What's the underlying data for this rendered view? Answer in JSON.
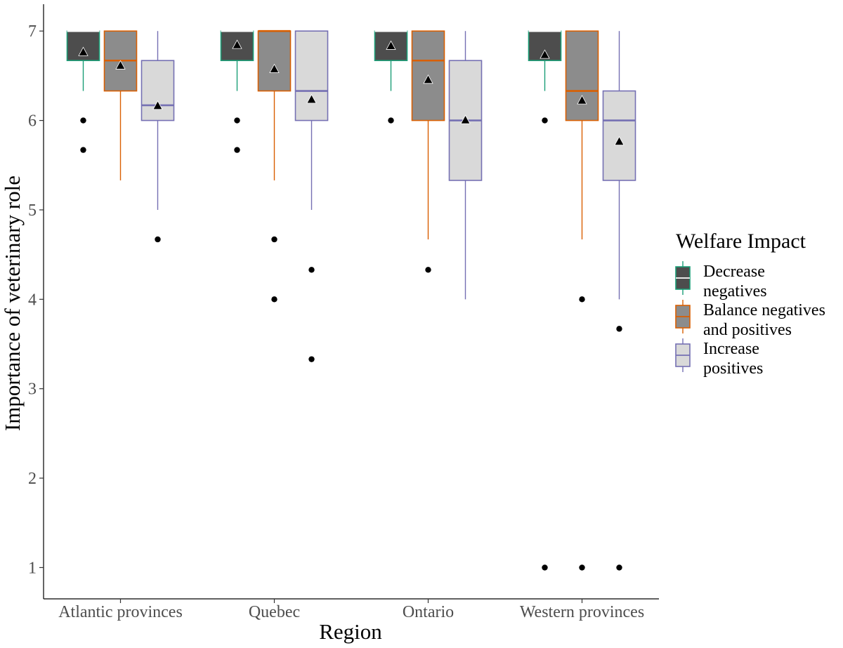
{
  "chart_data": {
    "type": "boxplot",
    "title": "",
    "xlabel": "Region",
    "ylabel": "Importance of veterinary role",
    "ylim": [
      0.65,
      7.3
    ],
    "yticks": [
      1,
      2,
      3,
      4,
      5,
      6,
      7
    ],
    "ytick_labels": [
      "1",
      "2",
      "3",
      "4",
      "5",
      "6",
      "7"
    ],
    "grid": false,
    "categories": [
      "Atlantic provinces",
      "Quebec",
      "Ontario",
      "Western provinces"
    ],
    "legend": {
      "title": "Welfare Impact",
      "position": "right",
      "entries": [
        {
          "line1": "Decrease",
          "line2": "negatives"
        },
        {
          "line1": "Balance negatives",
          "line2": "and positives"
        },
        {
          "line1": "Increase",
          "line2": "positives"
        }
      ]
    },
    "series": [
      {
        "name": "Decrease negatives",
        "fill": "#4d4d4d",
        "stroke": "#1b9e77",
        "median_color": "#ffffff",
        "boxes": [
          {
            "whisker_low": 6.33,
            "q1": 6.67,
            "median": 7.0,
            "q3": 7.0,
            "whisker_high": 7.0,
            "mean": 6.76,
            "outliers": [
              6.0,
              5.67
            ]
          },
          {
            "whisker_low": 6.33,
            "q1": 6.67,
            "median": 7.0,
            "q3": 7.0,
            "whisker_high": 7.0,
            "mean": 6.84,
            "outliers": [
              6.0,
              5.67
            ]
          },
          {
            "whisker_low": 6.33,
            "q1": 6.67,
            "median": 7.0,
            "q3": 7.0,
            "whisker_high": 7.0,
            "mean": 6.83,
            "outliers": [
              6.0
            ]
          },
          {
            "whisker_low": 6.33,
            "q1": 6.67,
            "median": 7.0,
            "q3": 7.0,
            "whisker_high": 7.0,
            "mean": 6.73,
            "outliers": [
              6.0,
              1.0
            ]
          }
        ]
      },
      {
        "name": "Balance negatives and positives",
        "fill": "#8c8c8c",
        "stroke": "#d95f02",
        "median_color": "#d95f02",
        "boxes": [
          {
            "whisker_low": 5.33,
            "q1": 6.33,
            "median": 6.67,
            "q3": 7.0,
            "whisker_high": 7.0,
            "mean": 6.61,
            "outliers": []
          },
          {
            "whisker_low": 5.33,
            "q1": 6.33,
            "median": 7.0,
            "q3": 7.0,
            "whisker_high": 7.0,
            "mean": 6.57,
            "outliers": [
              4.67,
              4.0
            ]
          },
          {
            "whisker_low": 4.67,
            "q1": 6.0,
            "median": 6.67,
            "q3": 7.0,
            "whisker_high": 7.0,
            "mean": 6.45,
            "outliers": [
              4.33
            ]
          },
          {
            "whisker_low": 4.67,
            "q1": 6.0,
            "median": 6.33,
            "q3": 7.0,
            "whisker_high": 7.0,
            "mean": 6.22,
            "outliers": [
              4.0,
              1.0
            ]
          }
        ]
      },
      {
        "name": "Increase positives",
        "fill": "#d9d9d9",
        "stroke": "#7570b3",
        "median_color": "#7570b3",
        "boxes": [
          {
            "whisker_low": 5.0,
            "q1": 6.0,
            "median": 6.17,
            "q3": 6.67,
            "whisker_high": 7.0,
            "mean": 6.16,
            "outliers": [
              4.67
            ]
          },
          {
            "whisker_low": 5.0,
            "q1": 6.0,
            "median": 6.33,
            "q3": 7.0,
            "whisker_high": 7.0,
            "mean": 6.23,
            "outliers": [
              4.33,
              3.33
            ]
          },
          {
            "whisker_low": 4.0,
            "q1": 5.33,
            "median": 6.0,
            "q3": 6.67,
            "whisker_high": 7.0,
            "mean": 6.0,
            "outliers": []
          },
          {
            "whisker_low": 4.0,
            "q1": 5.33,
            "median": 6.0,
            "q3": 6.33,
            "whisker_high": 7.0,
            "mean": 5.76,
            "outliers": [
              3.67,
              1.0
            ]
          }
        ]
      }
    ]
  }
}
